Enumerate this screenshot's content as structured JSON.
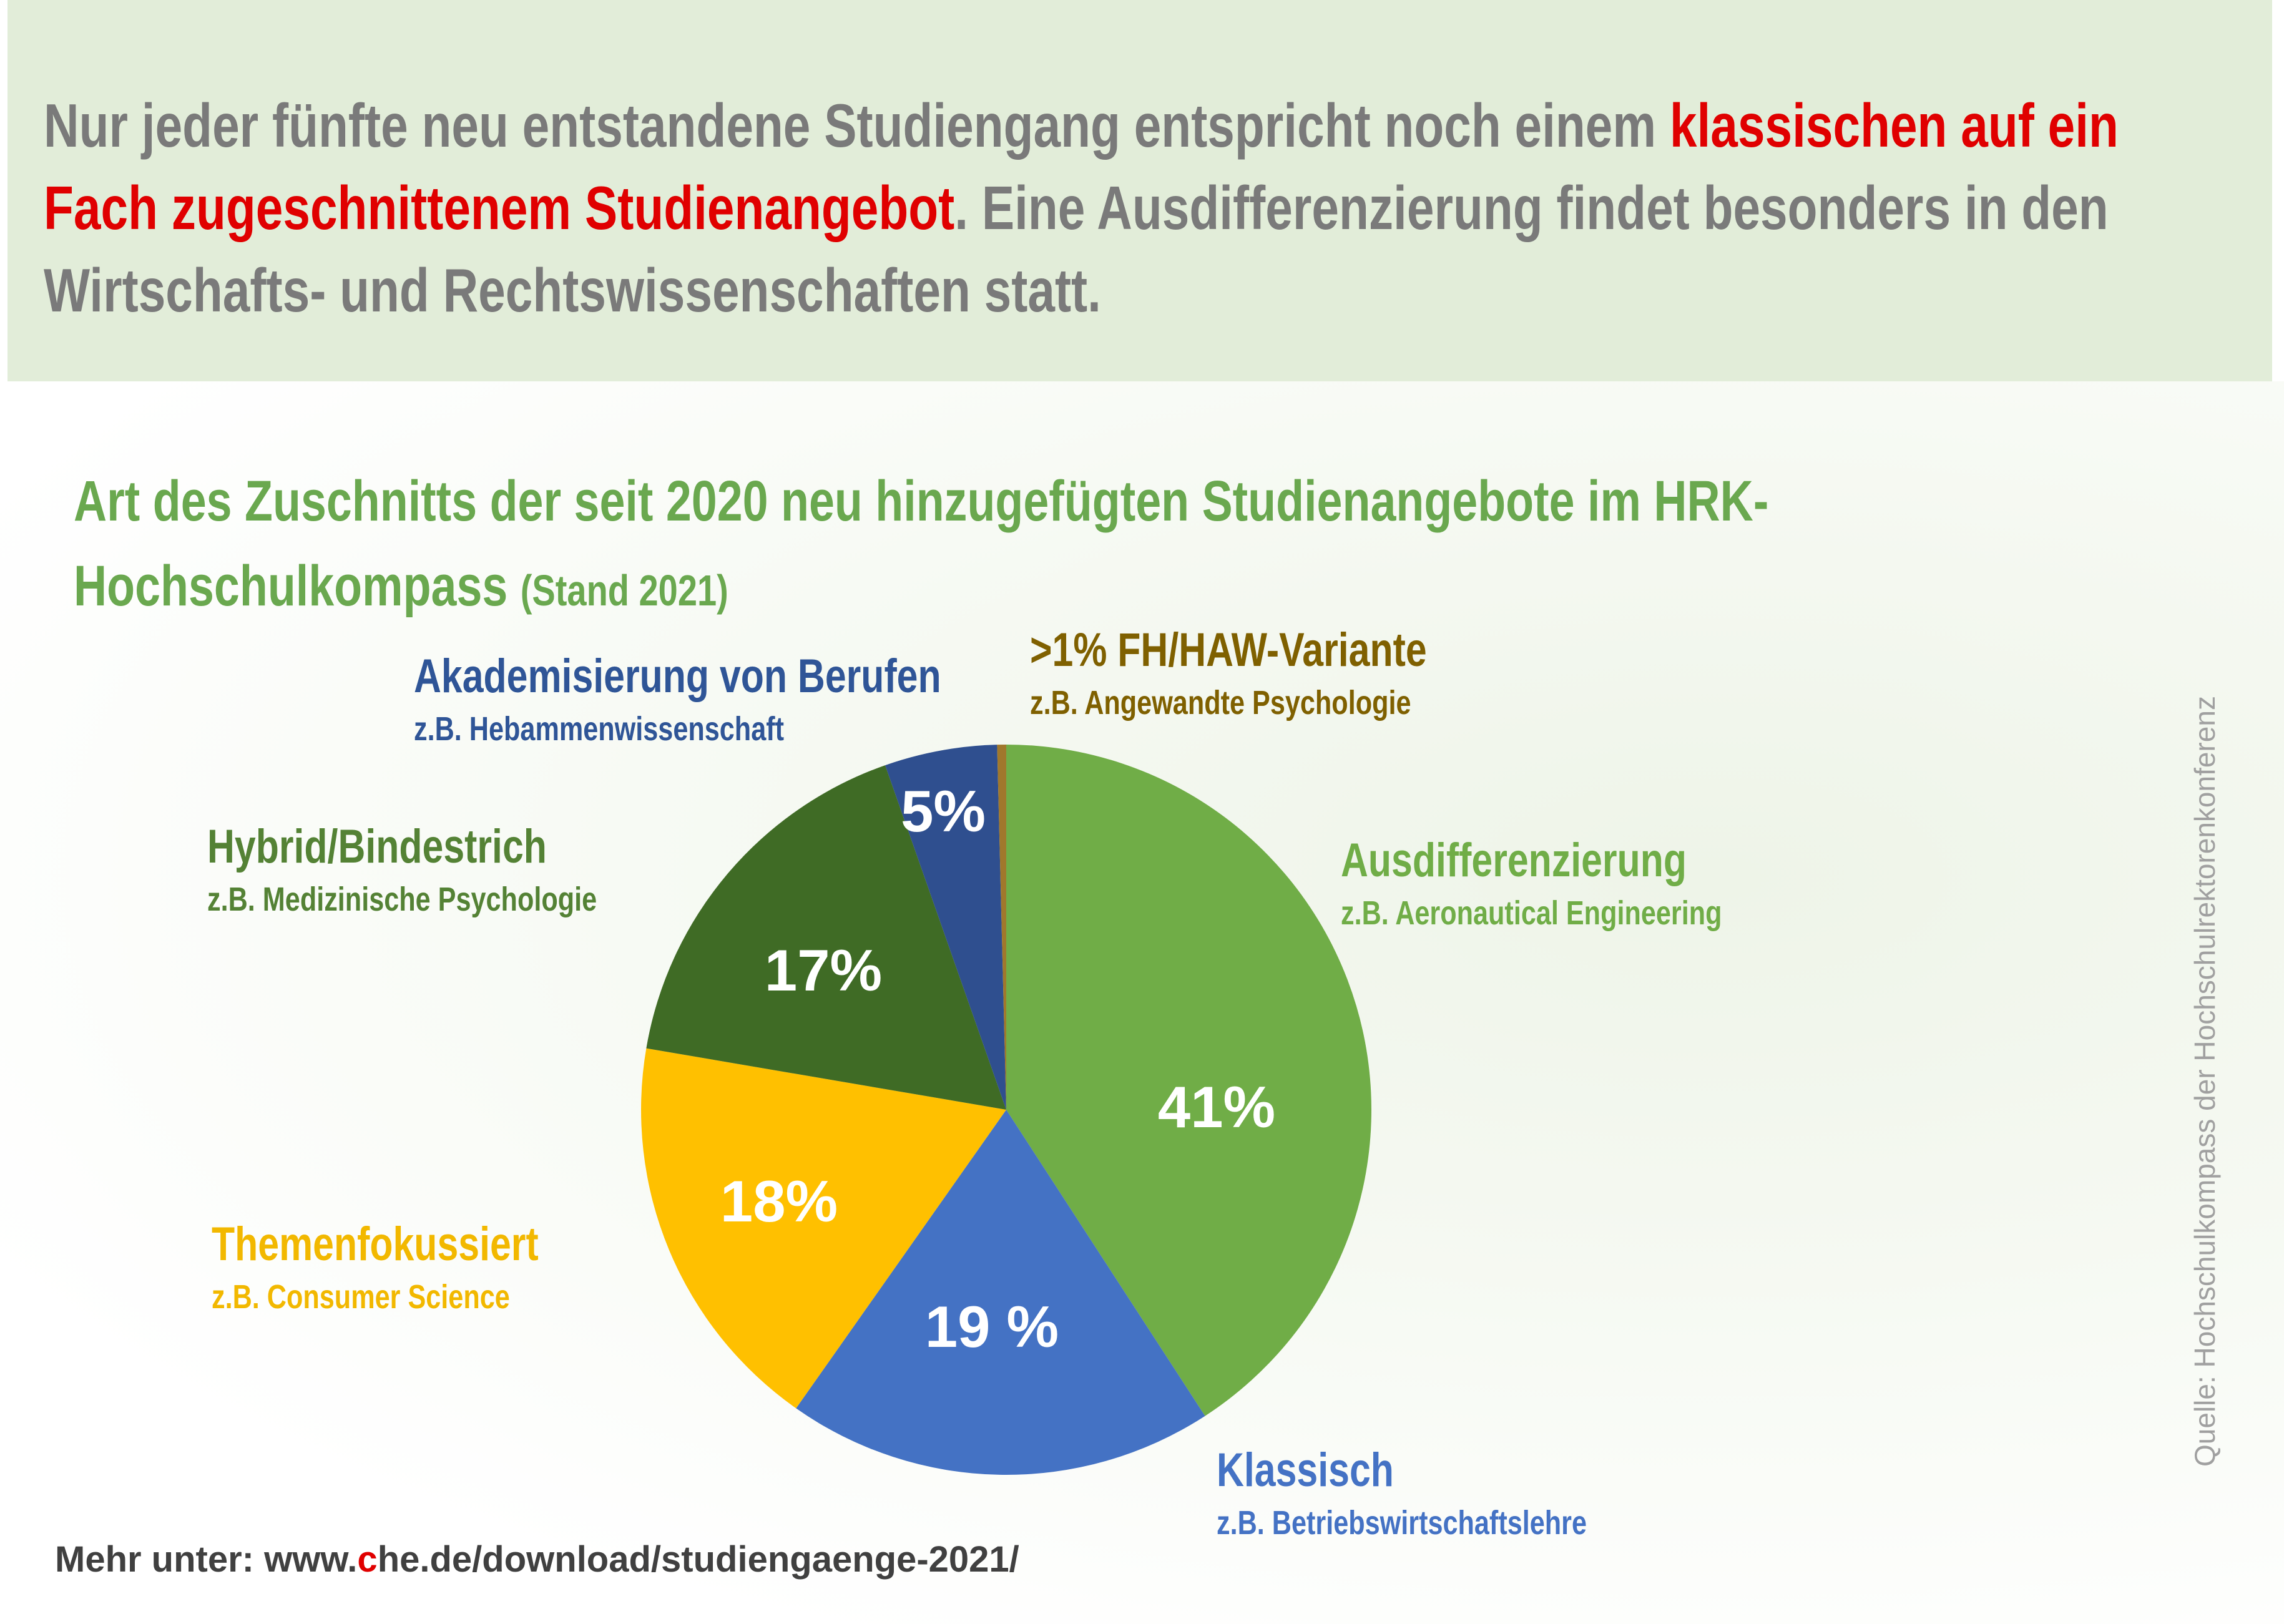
{
  "headline": {
    "part1": "Nur jeder fünfte neu entstandene Studiengang entspricht noch einem ",
    "highlight": "klassischen auf ein Fach zugeschnittenem Studienangebot",
    "part2": ". Eine Ausdifferenzierung findet besonders in den Wirtschafts- und Rechtswissenschaften statt."
  },
  "chart_data": {
    "type": "pie",
    "title": "Art des Zuschnitts der seit 2020 neu hinzugefügten Studienangebote im HRK-Hochschulkompass",
    "subtitle": "(Stand 2021)",
    "start": "12 o'clock, clockwise",
    "slices": [
      {
        "name": "Ausdifferenzierung",
        "example": "z.B. Aeronautical Engineering",
        "value": 41,
        "label": "41%",
        "color": "#70ad47"
      },
      {
        "name": "Klassisch",
        "example": "z.B. Betriebswirtschaftslehre",
        "value": 19,
        "label": "19 %",
        "color": "#4472c4"
      },
      {
        "name": "Themenfokussiert",
        "example": "z.B. Consumer Science",
        "value": 18,
        "label": "18%",
        "color": "#ffc000"
      },
      {
        "name": "Hybrid/Bindestrich",
        "example": "z.B. Medizinische Psychologie",
        "value": 17,
        "label": "17%",
        "color": "#3f6b25"
      },
      {
        "name": "Akademisierung von Berufen",
        "example": "z.B. Hebammenwissenschaft",
        "value": 5,
        "label": "5%",
        "color": "#2f4f8f"
      },
      {
        "name": ">1% FH/HAW-Variante",
        "example": "z.B. Angewandte Psychologie",
        "value": 0.4,
        "label": "",
        "color": "#a0782c"
      }
    ],
    "label_colors": {
      "Ausdifferenzierung": "#70ad47",
      "Klassisch": "#4472c4",
      "Themenfokussiert": "#f2b800",
      "Hybrid/Bindestrich": "#548235",
      "Akademisierung von Berufen": "#2f5597",
      ">1% FH/HAW-Variante": "#7f6000"
    }
  },
  "footer": {
    "pre": "Mehr unter: www.",
    "c": "c",
    "post": "he.de/download/studiengaenge-2021/"
  },
  "source": "Quelle: Hochschulkompass der Hochschulrektorenkonferenz"
}
